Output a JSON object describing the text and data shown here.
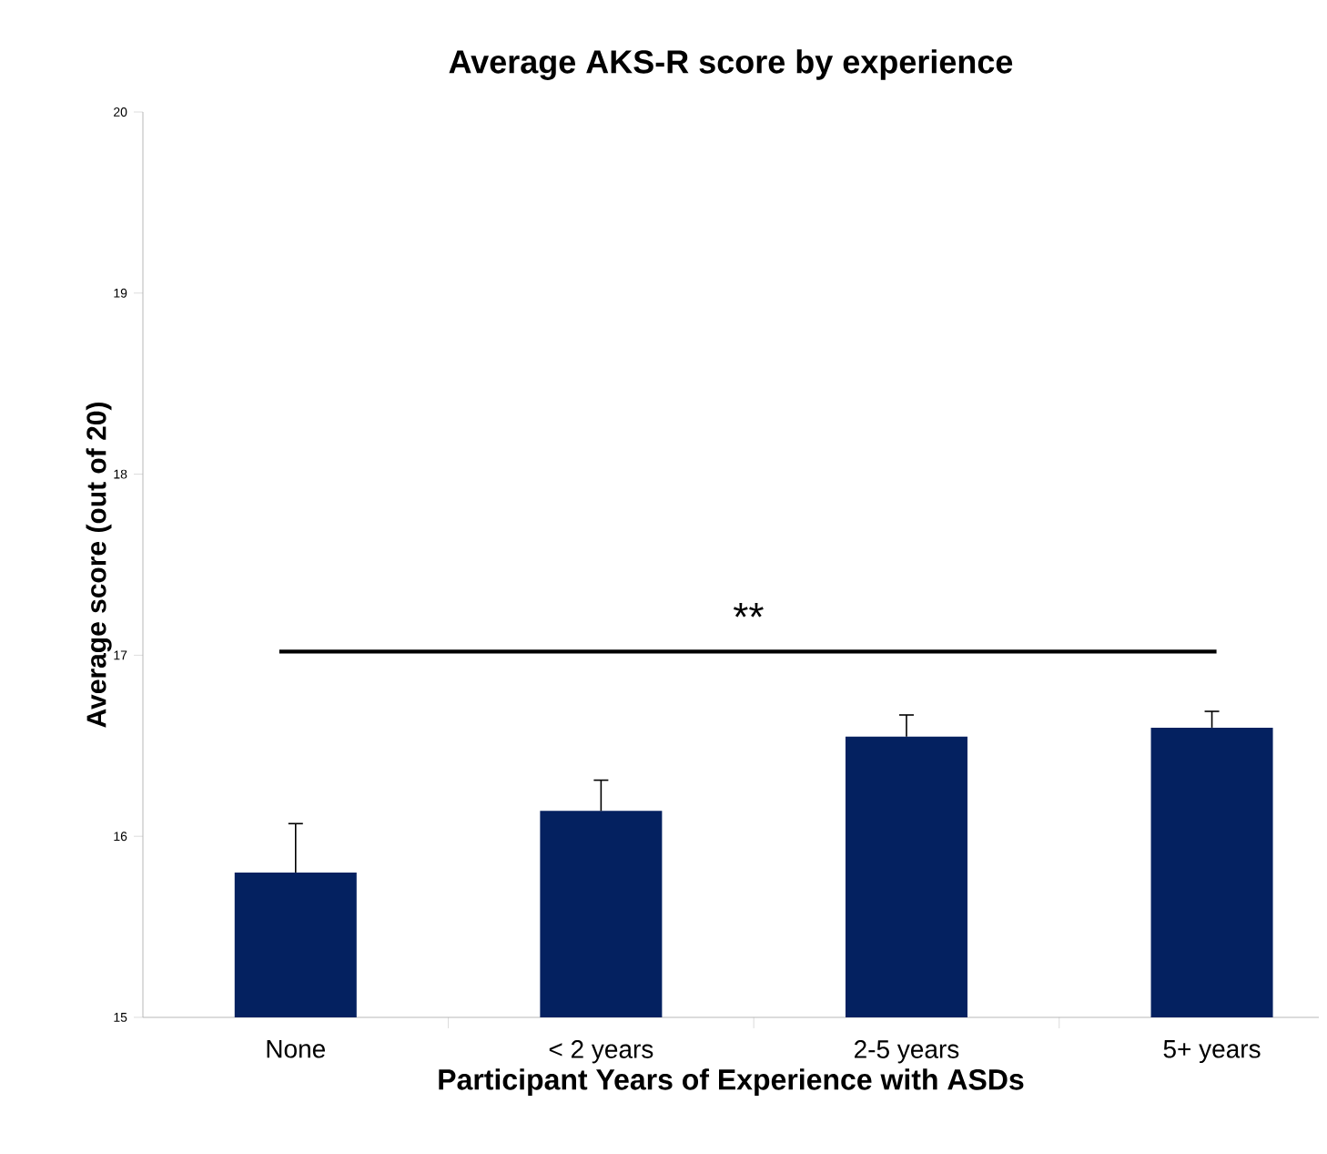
{
  "chart_data": {
    "type": "bar",
    "title": "Average AKS-R score by experience",
    "xlabel": "Participant Years of Experience with ASDs",
    "ylabel": "Average score (out of 20)",
    "categories": [
      "None",
      "< 2 years",
      "2-5 years",
      "5+ years"
    ],
    "values": [
      15.8,
      16.14,
      16.55,
      16.6
    ],
    "errors": [
      0.27,
      0.17,
      0.12,
      0.09
    ],
    "color": "#042160",
    "ylim": [
      15,
      20
    ],
    "yticks": [
      15,
      16,
      17,
      18,
      19,
      20
    ],
    "ref_lines": [
      {
        "axis": "y",
        "value": 17.02,
        "label": "**",
        "color": "#000000"
      }
    ]
  }
}
